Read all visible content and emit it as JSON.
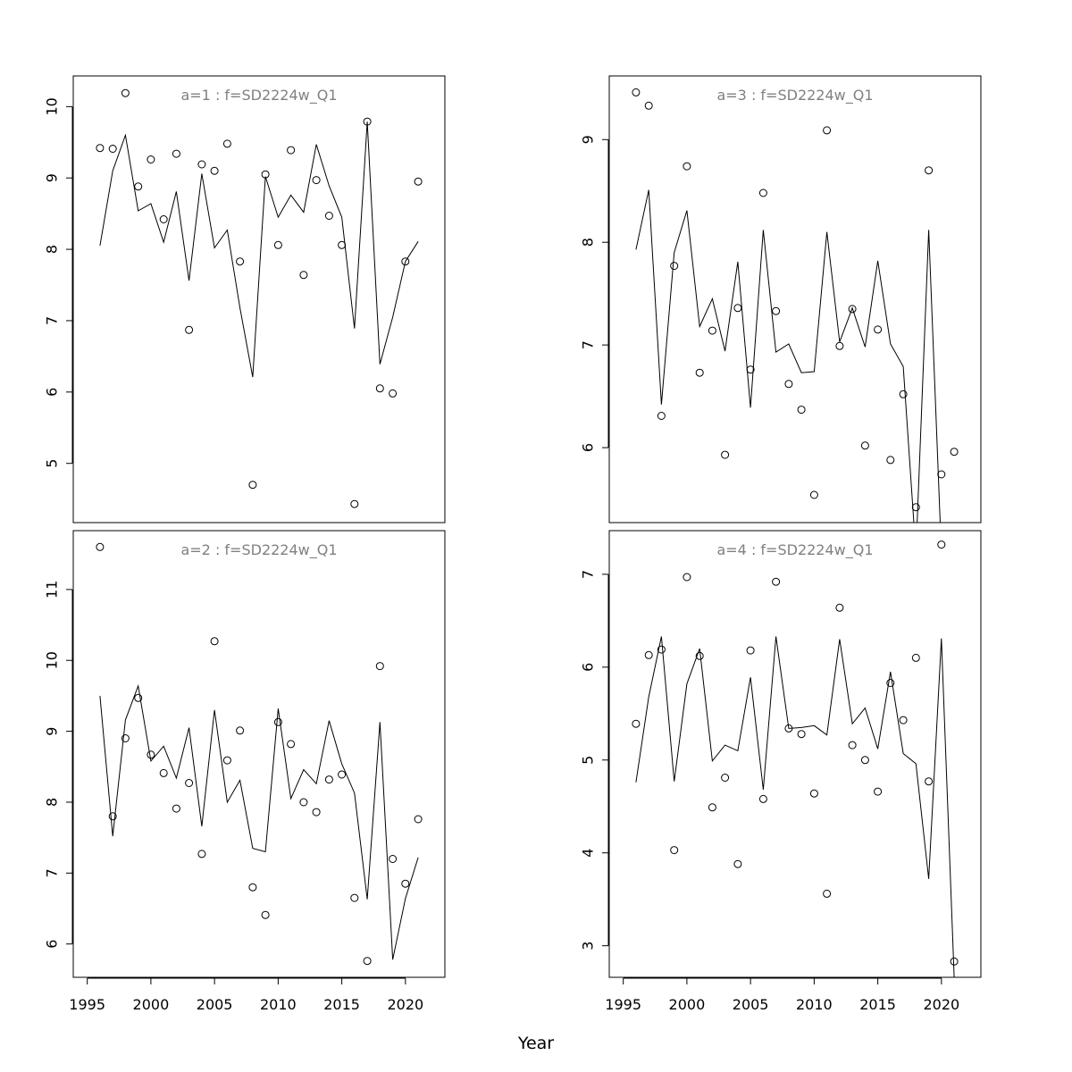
{
  "figure": {
    "xlabel": "Year"
  },
  "chart_data": [
    {
      "type": "scatter",
      "title": "a=1  :  f=SD2224w_Q1",
      "xlabel": "",
      "ylabel": "",
      "xlim": [
        1993.9,
        2023.1
      ],
      "ylim": [
        4.17,
        10.43
      ],
      "xticks": [],
      "yticks": [
        5,
        6,
        7,
        8,
        9,
        10
      ],
      "grid": false,
      "series": [
        {
          "kind": "points",
          "x": [
            1996,
            1997,
            1998,
            1999,
            2000,
            2001,
            2002,
            2003,
            2004,
            2005,
            2006,
            2007,
            2008,
            2009,
            2010,
            2011,
            2012,
            2013,
            2014,
            2015,
            2016,
            2017,
            2018,
            2019,
            2020,
            2021
          ],
          "y": [
            9.42,
            9.41,
            10.19,
            8.88,
            9.26,
            8.42,
            9.34,
            6.87,
            9.19,
            9.1,
            9.48,
            7.83,
            4.7,
            9.05,
            8.06,
            9.39,
            7.64,
            8.97,
            8.47,
            8.06,
            4.43,
            9.79,
            6.05,
            5.98,
            7.83,
            8.95
          ]
        },
        {
          "kind": "line",
          "x": [
            1996,
            1997,
            1998,
            1999,
            2000,
            2001,
            2002,
            2003,
            2004,
            2005,
            2006,
            2007,
            2008,
            2009,
            2010,
            2011,
            2012,
            2013,
            2014,
            2015,
            2016,
            2017,
            2018,
            2019,
            2020,
            2021
          ],
          "y": [
            8.05,
            9.1,
            9.6,
            8.54,
            8.64,
            8.1,
            8.81,
            7.56,
            9.06,
            8.02,
            8.27,
            7.18,
            6.21,
            9.02,
            8.45,
            8.76,
            8.52,
            9.47,
            8.89,
            8.45,
            6.89,
            9.79,
            6.39,
            7.05,
            7.83,
            8.11
          ]
        }
      ]
    },
    {
      "type": "scatter",
      "title": "a=3  :  f=SD2224w_Q1",
      "xlabel": "",
      "ylabel": "",
      "xlim": [
        1993.9,
        2023.1
      ],
      "ylim": [
        5.27,
        9.62
      ],
      "xticks": [],
      "yticks": [
        6,
        7,
        8,
        9
      ],
      "grid": false,
      "series": [
        {
          "kind": "points",
          "x": [
            1996,
            1997,
            1998,
            1999,
            2000,
            2001,
            2002,
            2003,
            2004,
            2005,
            2006,
            2007,
            2008,
            2009,
            2010,
            2011,
            2012,
            2013,
            2014,
            2015,
            2016,
            2017,
            2018,
            2019,
            2020,
            2021
          ],
          "y": [
            9.46,
            9.33,
            6.31,
            7.77,
            8.74,
            6.73,
            7.14,
            5.93,
            7.36,
            6.76,
            8.48,
            7.33,
            6.62,
            6.37,
            5.54,
            9.09,
            6.99,
            7.35,
            6.02,
            7.15,
            5.88,
            6.52,
            5.42,
            8.7,
            5.74,
            5.96
          ]
        },
        {
          "kind": "line",
          "x": [
            1996,
            1997,
            1998,
            1999,
            2000,
            2001,
            2002,
            2003,
            2004,
            2005,
            2006,
            2007,
            2008,
            2009,
            2010,
            2011,
            2012,
            2013,
            2014,
            2015,
            2016,
            2017,
            2018,
            2019,
            2020,
            2021
          ],
          "y": [
            7.93,
            8.51,
            6.42,
            7.9,
            8.31,
            7.18,
            7.45,
            6.94,
            7.81,
            6.39,
            8.12,
            6.93,
            7.01,
            6.73,
            6.74,
            8.1,
            7.03,
            7.36,
            6.98,
            7.82,
            7.01,
            6.79,
            4.97,
            8.12,
            4.97,
            5.27
          ]
        }
      ]
    },
    {
      "type": "scatter",
      "title": "a=2  :  f=SD2224w_Q1",
      "xlabel": "",
      "ylabel": "",
      "xlim": [
        1993.9,
        2023.1
      ],
      "ylim": [
        5.53,
        11.83
      ],
      "xticks": [
        1995,
        2000,
        2005,
        2010,
        2015,
        2020
      ],
      "yticks": [
        6,
        7,
        8,
        9,
        10,
        11
      ],
      "grid": false,
      "series": [
        {
          "kind": "points",
          "x": [
            1996,
            1997,
            1998,
            1999,
            2000,
            2001,
            2002,
            2003,
            2004,
            2005,
            2006,
            2007,
            2008,
            2009,
            2010,
            2011,
            2012,
            2013,
            2014,
            2015,
            2016,
            2017,
            2018,
            2019,
            2020,
            2021
          ],
          "y": [
            11.6,
            7.8,
            8.9,
            9.47,
            8.67,
            8.41,
            7.91,
            8.27,
            7.27,
            10.27,
            8.59,
            9.01,
            6.8,
            6.41,
            9.13,
            8.82,
            8.0,
            7.86,
            8.32,
            8.39,
            6.65,
            5.76,
            9.92,
            7.2,
            6.85,
            7.76
          ]
        },
        {
          "kind": "line",
          "x": [
            1996,
            1997,
            1998,
            1999,
            2000,
            2001,
            2002,
            2003,
            2004,
            2005,
            2006,
            2007,
            2008,
            2009,
            2010,
            2011,
            2012,
            2013,
            2014,
            2015,
            2016,
            2017,
            2018,
            2019,
            2020,
            2021
          ],
          "y": [
            9.5,
            7.52,
            9.16,
            9.64,
            8.58,
            8.79,
            8.34,
            9.05,
            7.66,
            9.3,
            8.0,
            8.31,
            7.35,
            7.3,
            9.32,
            8.05,
            8.46,
            8.26,
            9.15,
            8.54,
            8.13,
            6.63,
            9.13,
            5.78,
            6.64,
            7.22
          ]
        }
      ]
    },
    {
      "type": "scatter",
      "title": "a=4  :  f=SD2224w_Q1",
      "xlabel": "",
      "ylabel": "",
      "xlim": [
        1993.9,
        2023.1
      ],
      "ylim": [
        2.66,
        7.47
      ],
      "xticks": [
        1995,
        2000,
        2005,
        2010,
        2015,
        2020
      ],
      "yticks": [
        3,
        4,
        5,
        6,
        7
      ],
      "grid": false,
      "series": [
        {
          "kind": "points",
          "x": [
            1996,
            1997,
            1998,
            1999,
            2000,
            2001,
            2002,
            2003,
            2004,
            2005,
            2006,
            2007,
            2008,
            2009,
            2010,
            2011,
            2012,
            2013,
            2014,
            2015,
            2016,
            2017,
            2018,
            2019,
            2020,
            2021
          ],
          "y": [
            5.39,
            6.13,
            6.19,
            4.03,
            6.97,
            6.12,
            4.49,
            4.81,
            3.88,
            6.18,
            4.58,
            6.92,
            5.34,
            5.28,
            4.64,
            3.56,
            6.64,
            5.16,
            5.0,
            4.66,
            5.83,
            5.43,
            6.1,
            4.77,
            7.32,
            2.83
          ]
        },
        {
          "kind": "line",
          "x": [
            1996,
            1997,
            1998,
            1999,
            2000,
            2001,
            2002,
            2003,
            2004,
            2005,
            2006,
            2007,
            2008,
            2009,
            2010,
            2011,
            2012,
            2013,
            2014,
            2015,
            2016,
            2017,
            2018,
            2019,
            2020,
            2021
          ],
          "y": [
            4.76,
            5.68,
            6.33,
            4.77,
            5.82,
            6.2,
            4.99,
            5.16,
            5.1,
            5.89,
            4.68,
            6.33,
            5.34,
            5.35,
            5.37,
            5.27,
            6.3,
            5.39,
            5.56,
            5.12,
            5.95,
            5.07,
            4.96,
            3.72,
            6.31,
            2.66
          ]
        }
      ]
    }
  ]
}
